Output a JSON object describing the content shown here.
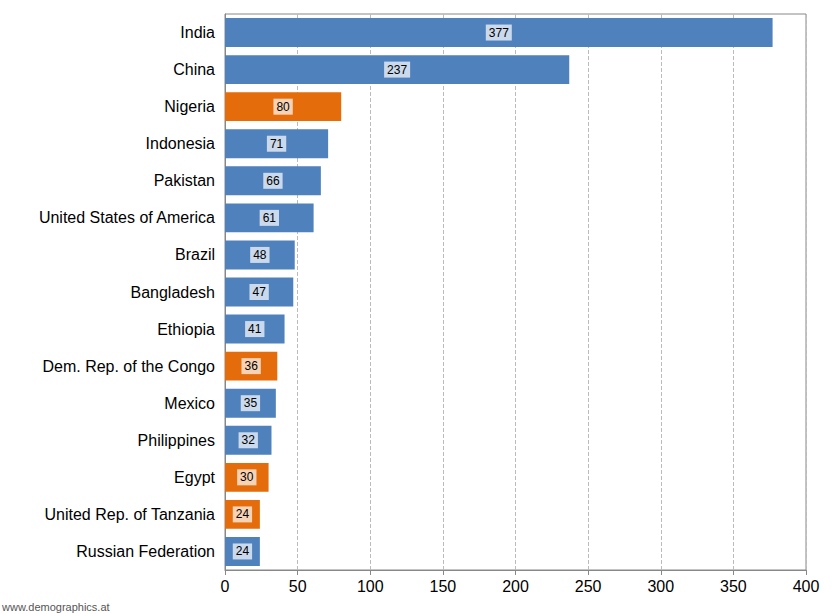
{
  "chart_data": {
    "type": "bar",
    "orientation": "horizontal",
    "categories": [
      "India",
      "China",
      "Nigeria",
      "Indonesia",
      "Pakistan",
      "United States of America",
      "Brazil",
      "Bangladesh",
      "Ethiopia",
      "Dem. Rep. of the Congo",
      "Mexico",
      "Philippines",
      "Egypt",
      "United Rep. of Tanzania",
      "Russian Federation"
    ],
    "values": [
      377,
      237,
      80,
      71,
      66,
      61,
      48,
      47,
      41,
      36,
      35,
      32,
      30,
      24,
      24
    ],
    "colors": [
      "#4f81bd",
      "#4f81bd",
      "#e46c0a",
      "#4f81bd",
      "#4f81bd",
      "#4f81bd",
      "#4f81bd",
      "#4f81bd",
      "#4f81bd",
      "#e46c0a",
      "#4f81bd",
      "#4f81bd",
      "#e46c0a",
      "#e46c0a",
      "#4f81bd"
    ],
    "xlim": [
      0,
      400
    ],
    "xticks": [
      0,
      50,
      100,
      150,
      200,
      250,
      300,
      350,
      400
    ],
    "grid": true,
    "data_labels": true,
    "annotation": "www.demographics.at"
  }
}
